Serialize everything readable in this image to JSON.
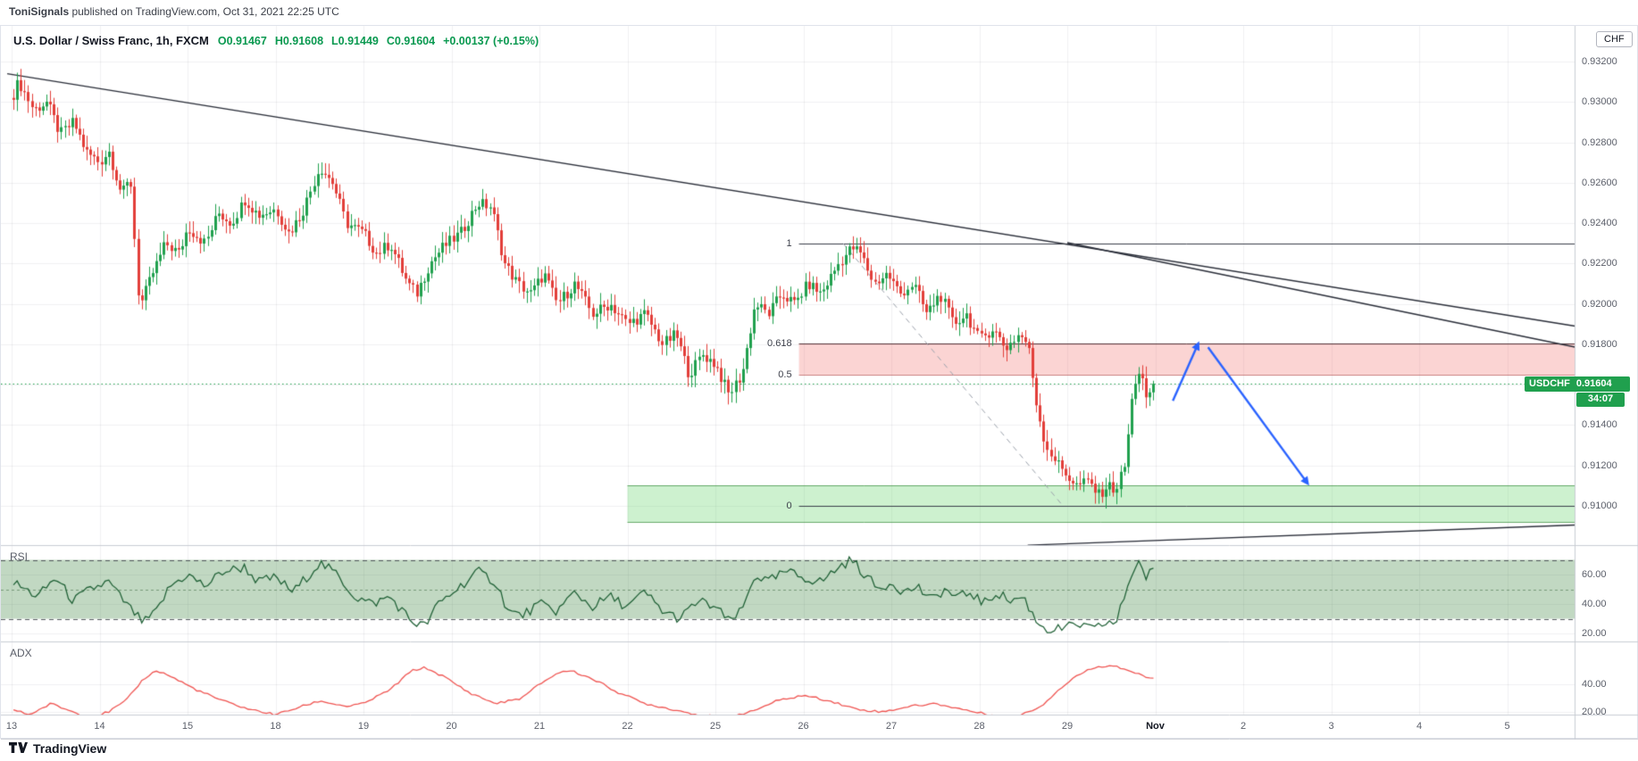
{
  "snapshot_header": {
    "author": "ToniSignals",
    "suffix": " published on TradingView.com, Oct 31, 2021 22:25 UTC"
  },
  "legend": {
    "title": "U.S. Dollar / Swiss Franc, 1h, FXCM",
    "values": [
      "O0.91467",
      "H0.91608",
      "L0.91449",
      "C0.91604",
      "+0.00137 (+0.15%)"
    ]
  },
  "badge": {
    "symbol": "USDCHF",
    "price": "0.91604",
    "countdown": "34:07"
  },
  "panes": {
    "rsi_label": "RSI",
    "adx_label": "ADX"
  },
  "axes": {
    "price_unit": "CHF",
    "price_labels": [
      0.932,
      0.93,
      0.928,
      0.926,
      0.924,
      0.922,
      0.92,
      0.918,
      0.914,
      0.912,
      0.91
    ],
    "rsi_labels": [
      60,
      40,
      20
    ],
    "adx_labels": [
      40,
      20
    ],
    "time_labels": [
      "13",
      "14",
      "15",
      "18",
      "19",
      "20",
      "21",
      "22",
      "25",
      "26",
      "27",
      "28",
      "29",
      "Nov",
      "2",
      "3",
      "4",
      "5"
    ]
  },
  "logo_text": "TradingView",
  "chart_data": {
    "type": "candlestick",
    "title": "U.S. Dollar / Swiss Franc",
    "symbol": "USDCHF",
    "interval": "1h",
    "exchange": "FXCM",
    "current": {
      "open": 0.91467,
      "high": 0.91608,
      "low": 0.91449,
      "close": 0.91604,
      "change": "+0.00137 (+0.15%)"
    },
    "current_price": 0.91604,
    "price_axis_range": [
      0.9082,
      0.9336
    ],
    "price_grid_step": 0.002,
    "colors": {
      "up": "#20a04e",
      "down": "#e23e39",
      "rsi": "#1c5e33",
      "adx": "#ef5350",
      "arrow": "#2962ff",
      "trend": "#2a2e39"
    },
    "price_path": {
      "t": [
        0,
        0.08,
        0.25,
        0.4,
        0.55,
        0.7,
        0.85,
        1.0,
        1.1,
        1.25,
        1.35,
        1.45,
        1.6,
        1.75,
        1.9,
        2.0,
        2.2,
        2.35,
        2.5,
        2.65,
        2.8,
        3.0,
        3.15,
        3.3,
        3.5,
        3.65,
        3.8,
        4.0,
        4.15,
        4.3,
        4.5,
        4.6,
        4.75,
        4.9,
        5.1,
        5.3,
        5.45,
        5.6,
        5.75,
        5.9,
        6.05,
        6.2,
        6.4,
        6.6,
        6.8,
        7.0,
        7.2,
        7.4,
        7.55,
        7.7,
        7.85,
        8.0,
        8.15,
        8.3,
        8.45,
        8.6,
        8.75,
        8.9,
        9.05,
        9.2,
        9.4,
        9.55,
        9.65,
        9.8,
        9.95,
        10.1,
        10.25,
        10.4,
        10.55,
        10.7,
        10.85,
        11.0,
        11.15,
        11.3,
        11.45,
        11.55,
        11.65,
        11.75,
        11.9,
        12.0,
        12.1,
        12.25,
        12.35,
        12.45,
        12.55,
        12.65,
        12.75,
        12.83,
        12.9,
        12.96
      ],
      "v": [
        0.9302,
        0.931,
        0.9296,
        0.93,
        0.9284,
        0.929,
        0.9275,
        0.927,
        0.9276,
        0.9254,
        0.9262,
        0.9198,
        0.9215,
        0.923,
        0.9225,
        0.9238,
        0.923,
        0.9245,
        0.924,
        0.9252,
        0.9244,
        0.9247,
        0.9235,
        0.9245,
        0.9268,
        0.926,
        0.924,
        0.9235,
        0.9225,
        0.923,
        0.921,
        0.9205,
        0.922,
        0.9228,
        0.9235,
        0.925,
        0.9248,
        0.922,
        0.921,
        0.9205,
        0.9215,
        0.92,
        0.921,
        0.9195,
        0.92,
        0.919,
        0.9195,
        0.918,
        0.9185,
        0.9165,
        0.9175,
        0.917,
        0.9155,
        0.9165,
        0.92,
        0.9195,
        0.9205,
        0.92,
        0.921,
        0.9205,
        0.922,
        0.9228,
        0.9225,
        0.921,
        0.9215,
        0.9205,
        0.921,
        0.9195,
        0.9205,
        0.919,
        0.9195,
        0.9182,
        0.9188,
        0.9178,
        0.9185,
        0.918,
        0.915,
        0.913,
        0.912,
        0.9115,
        0.911,
        0.9112,
        0.9105,
        0.911,
        0.9108,
        0.912,
        0.916,
        0.9168,
        0.915,
        0.91604
      ]
    },
    "indicators": {
      "rsi": {
        "bands": [
          70,
          50,
          30
        ],
        "range": [
          14,
          80
        ],
        "t": [
          0,
          0.3,
          0.5,
          0.7,
          0.9,
          1.1,
          1.3,
          1.5,
          1.65,
          1.8,
          2.0,
          2.2,
          2.4,
          2.65,
          2.8,
          3.0,
          3.2,
          3.5,
          3.7,
          3.9,
          4.1,
          4.3,
          4.55,
          4.7,
          4.85,
          5.1,
          5.3,
          5.5,
          5.65,
          5.8,
          6.0,
          6.2,
          6.4,
          6.6,
          6.8,
          7.0,
          7.2,
          7.4,
          7.6,
          7.8,
          8.0,
          8.15,
          8.3,
          8.45,
          8.6,
          8.8,
          9.0,
          9.2,
          9.4,
          9.55,
          9.7,
          9.85,
          10.0,
          10.15,
          10.3,
          10.45,
          10.6,
          10.75,
          10.9,
          11.05,
          11.2,
          11.35,
          11.5,
          11.65,
          11.8,
          12.0,
          12.15,
          12.3,
          12.45,
          12.55,
          12.7,
          12.8,
          12.9,
          12.96
        ],
        "v": [
          55,
          45,
          58,
          42,
          50,
          55,
          40,
          27,
          35,
          52,
          60,
          52,
          62,
          65,
          55,
          58,
          48,
          68,
          60,
          45,
          40,
          45,
          28,
          25,
          40,
          52,
          62,
          55,
          35,
          32,
          40,
          35,
          48,
          38,
          45,
          38,
          48,
          35,
          30,
          42,
          38,
          28,
          35,
          60,
          55,
          62,
          58,
          55,
          65,
          70,
          60,
          50,
          55,
          48,
          52,
          42,
          50,
          44,
          48,
          40,
          48,
          42,
          45,
          28,
          22,
          24,
          26,
          22,
          28,
          26,
          55,
          70,
          58,
          62
        ]
      },
      "adx": {
        "t": [
          0,
          0.2,
          0.45,
          0.7,
          0.9,
          1.1,
          1.3,
          1.5,
          1.65,
          1.8,
          2.1,
          2.4,
          2.7,
          3.0,
          3.2,
          3.5,
          3.8,
          4.0,
          4.3,
          4.55,
          4.7,
          4.9,
          5.2,
          5.5,
          5.8,
          6.0,
          6.2,
          6.35,
          6.6,
          6.9,
          7.2,
          7.5,
          7.8,
          8.1,
          8.4,
          8.7,
          9.0,
          9.3,
          9.6,
          9.9,
          10.2,
          10.5,
          10.8,
          11.1,
          11.4,
          11.7,
          11.9,
          12.1,
          12.3,
          12.5,
          12.7,
          12.85,
          12.96
        ],
        "v": [
          22,
          18,
          26,
          20,
          16,
          20,
          28,
          44,
          50,
          46,
          36,
          28,
          22,
          18,
          22,
          28,
          24,
          26,
          36,
          50,
          52,
          46,
          34,
          26,
          30,
          40,
          48,
          50,
          44,
          34,
          26,
          22,
          18,
          16,
          20,
          28,
          32,
          28,
          22,
          20,
          24,
          26,
          22,
          18,
          16,
          24,
          36,
          46,
          52,
          54,
          50,
          46,
          44
        ]
      }
    },
    "fib": {
      "start_day": 8.95,
      "levels": [
        {
          "label": "1",
          "price": 0.923
        },
        {
          "label": "0.618",
          "price": 0.91803
        },
        {
          "label": "0.5",
          "price": 0.9165
        },
        {
          "label": "0",
          "price": 0.91
        }
      ],
      "baseline": {
        "from": {
          "day": 9.45,
          "price": 0.923
        },
        "to": {
          "day": 11.95,
          "price": 0.91
        }
      }
    },
    "zones": {
      "supply": {
        "from_day": 8.95,
        "top": 0.91803,
        "bottom": 0.9165
      },
      "demand": {
        "from_day": 7.0,
        "top": 0.911,
        "bottom": 0.9092
      }
    },
    "trendlines": [
      {
        "from": {
          "day": -0.05,
          "price": 0.9314
        },
        "to": {
          "day": 17.77,
          "price": 0.9189
        }
      },
      {
        "from": {
          "day": 12.0,
          "price": 0.92303
        },
        "to": {
          "day": 17.77,
          "price": 0.91786
        }
      },
      {
        "from": {
          "day": 11.55,
          "price": 0.90805
        },
        "to": {
          "day": 17.77,
          "price": 0.90905
        }
      }
    ],
    "arrows": [
      {
        "from": {
          "day": 13.2,
          "price": 0.9152
        },
        "to": {
          "day": 13.5,
          "price": 0.91815
        }
      },
      {
        "from": {
          "day": 13.6,
          "price": 0.91785
        },
        "to": {
          "day": 14.75,
          "price": 0.911
        }
      }
    ]
  }
}
